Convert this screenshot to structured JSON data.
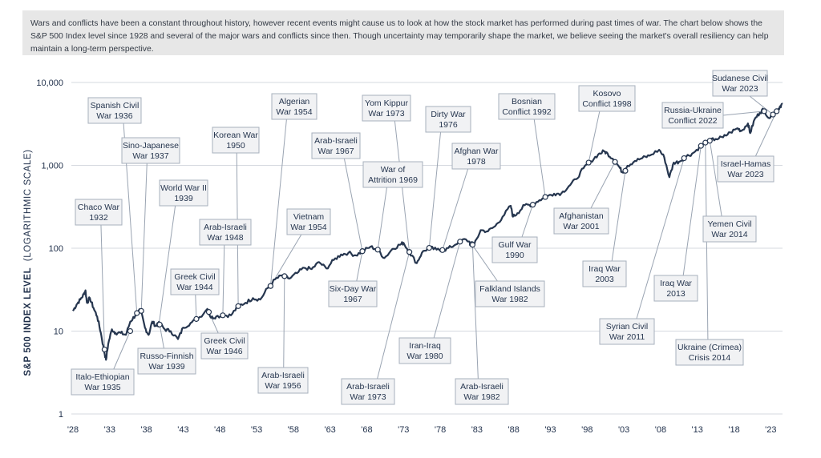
{
  "intro_text": "Wars and conflicts have been a constant throughout history, however recent events might cause us to look at how the stock market has performed during past times of war. The chart below shows the S&P 500 Index level since 1928 and several of the major wars and conflicts since then. Though uncertainty may temporarily shape the market, we believe seeing the market's overall resiliency can help maintain a long-term perspective.",
  "colors": {
    "line": "#26364f",
    "grid": "#d5d9df",
    "box_fill": "#f1f2f4",
    "box_stroke": "#a7b0bd",
    "intro_bg": "#e7e7e7"
  },
  "chart_data": {
    "type": "line",
    "title": "",
    "ylabel_main": "S&P 500 INDEX LEVEL",
    "ylabel_sub": "(LOGARITHMIC SCALE)",
    "xlabel": "",
    "yscale": "log",
    "ylim": [
      1,
      10000
    ],
    "xlim": [
      1928,
      2024.6
    ],
    "y_ticks": [
      {
        "value": 1,
        "label": "1"
      },
      {
        "value": 10,
        "label": "10"
      },
      {
        "value": 100,
        "label": "100"
      },
      {
        "value": 1000,
        "label": "1,000"
      },
      {
        "value": 10000,
        "label": "10,000"
      }
    ],
    "x_ticks": [
      {
        "value": 1928,
        "label": "'28"
      },
      {
        "value": 1933,
        "label": "'33"
      },
      {
        "value": 1938,
        "label": "'38"
      },
      {
        "value": 1943,
        "label": "'43"
      },
      {
        "value": 1948,
        "label": "'48"
      },
      {
        "value": 1953,
        "label": "'53"
      },
      {
        "value": 1958,
        "label": "'58"
      },
      {
        "value": 1963,
        "label": "'63"
      },
      {
        "value": 1968,
        "label": "'68"
      },
      {
        "value": 1973,
        "label": "'73"
      },
      {
        "value": 1978,
        "label": "'78"
      },
      {
        "value": 1983,
        "label": "'83"
      },
      {
        "value": 1988,
        "label": "'88"
      },
      {
        "value": 1993,
        "label": "'93"
      },
      {
        "value": 1998,
        "label": "'98"
      },
      {
        "value": 2003,
        "label": "'03"
      },
      {
        "value": 2008,
        "label": "'08"
      },
      {
        "value": 2013,
        "label": "'13"
      },
      {
        "value": 2018,
        "label": "'18"
      },
      {
        "value": 2023,
        "label": "'23"
      }
    ],
    "series": [
      {
        "name": "S&P 500 Index",
        "points": [
          [
            1928.0,
            17.5
          ],
          [
            1928.5,
            21
          ],
          [
            1929.0,
            24
          ],
          [
            1929.5,
            28
          ],
          [
            1929.7,
            31
          ],
          [
            1929.9,
            22
          ],
          [
            1930.3,
            25
          ],
          [
            1930.8,
            19
          ],
          [
            1931.3,
            15
          ],
          [
            1931.8,
            9.5
          ],
          [
            1932.2,
            6
          ],
          [
            1932.5,
            4.5
          ],
          [
            1932.8,
            7
          ],
          [
            1933.3,
            10.5
          ],
          [
            1933.8,
            9.5
          ],
          [
            1934.5,
            9.5
          ],
          [
            1935.2,
            9
          ],
          [
            1935.8,
            13
          ],
          [
            1936.5,
            15.5
          ],
          [
            1937.2,
            18
          ],
          [
            1937.8,
            11
          ],
          [
            1938.3,
            9
          ],
          [
            1938.8,
            13
          ],
          [
            1939.3,
            11.5
          ],
          [
            1939.8,
            12.5
          ],
          [
            1940.5,
            10.5
          ],
          [
            1941.3,
            10
          ],
          [
            1942.3,
            8
          ],
          [
            1943.0,
            11
          ],
          [
            1944.0,
            12.5
          ],
          [
            1945.0,
            14
          ],
          [
            1946.3,
            18.5
          ],
          [
            1946.8,
            14.5
          ],
          [
            1947.5,
            15
          ],
          [
            1948.5,
            15.5
          ],
          [
            1949.5,
            15.5
          ],
          [
            1950.5,
            20
          ],
          [
            1951.5,
            22
          ],
          [
            1952.5,
            25
          ],
          [
            1953.5,
            24
          ],
          [
            1954.5,
            33
          ],
          [
            1955.5,
            42
          ],
          [
            1956.5,
            47
          ],
          [
            1957.5,
            43
          ],
          [
            1958.5,
            50
          ],
          [
            1959.5,
            58
          ],
          [
            1960.5,
            56
          ],
          [
            1961.5,
            68
          ],
          [
            1962.5,
            57
          ],
          [
            1963.5,
            72
          ],
          [
            1964.5,
            84
          ],
          [
            1965.5,
            88
          ],
          [
            1966.5,
            82
          ],
          [
            1967.5,
            93
          ],
          [
            1968.5,
            104
          ],
          [
            1969.5,
            96
          ],
          [
            1970.4,
            76
          ],
          [
            1971.5,
            98
          ],
          [
            1972.5,
            110
          ],
          [
            1973.0,
            116
          ],
          [
            1973.8,
            90
          ],
          [
            1974.8,
            66
          ],
          [
            1975.5,
            88
          ],
          [
            1976.5,
            102
          ],
          [
            1977.5,
            96
          ],
          [
            1978.5,
            95
          ],
          [
            1979.5,
            103
          ],
          [
            1980.5,
            120
          ],
          [
            1981.5,
            128
          ],
          [
            1982.6,
            108
          ],
          [
            1983.5,
            165
          ],
          [
            1984.5,
            160
          ],
          [
            1985.5,
            185
          ],
          [
            1986.5,
            240
          ],
          [
            1987.6,
            325
          ],
          [
            1987.9,
            240
          ],
          [
            1988.5,
            265
          ],
          [
            1989.5,
            330
          ],
          [
            1990.5,
            335
          ],
          [
            1991.5,
            380
          ],
          [
            1992.5,
            420
          ],
          [
            1993.5,
            455
          ],
          [
            1994.5,
            460
          ],
          [
            1995.5,
            560
          ],
          [
            1996.5,
            680
          ],
          [
            1997.5,
            920
          ],
          [
            1998.5,
            1120
          ],
          [
            1999.5,
            1350
          ],
          [
            2000.3,
            1480
          ],
          [
            2000.8,
            1380
          ],
          [
            2001.5,
            1200
          ],
          [
            2002.4,
            950
          ],
          [
            2002.8,
            820
          ],
          [
            2003.5,
            990
          ],
          [
            2004.5,
            1130
          ],
          [
            2005.5,
            1220
          ],
          [
            2006.5,
            1310
          ],
          [
            2007.8,
            1540
          ],
          [
            2008.5,
            1250
          ],
          [
            2009.2,
            720
          ],
          [
            2009.8,
            1080
          ],
          [
            2010.5,
            1100
          ],
          [
            2011.5,
            1280
          ],
          [
            2012.5,
            1420
          ],
          [
            2013.5,
            1720
          ],
          [
            2014.5,
            1980
          ],
          [
            2015.5,
            2080
          ],
          [
            2016.5,
            2180
          ],
          [
            2017.5,
            2500
          ],
          [
            2018.5,
            2800
          ],
          [
            2019.0,
            2600
          ],
          [
            2019.9,
            3200
          ],
          [
            2020.2,
            2450
          ],
          [
            2020.8,
            3600
          ],
          [
            2021.5,
            4300
          ],
          [
            2022.0,
            4750
          ],
          [
            2022.8,
            3700
          ],
          [
            2023.5,
            4450
          ],
          [
            2023.9,
            4600
          ],
          [
            2024.3,
            5200
          ],
          [
            2024.6,
            5500
          ]
        ]
      }
    ],
    "annotations": [
      {
        "label": [
          "Chaco War",
          "1932"
        ],
        "event_x": 1932.3,
        "event_y": 6
      },
      {
        "label": [
          "Spanish Civil",
          "War 1936"
        ],
        "event_x": 1936.7,
        "event_y": 16.5
      },
      {
        "label": [
          "Sino-Japanese",
          "War 1937"
        ],
        "event_x": 1937.3,
        "event_y": 17.5
      },
      {
        "label": [
          "World War II",
          "1939"
        ],
        "event_x": 1939.7,
        "event_y": 12
      },
      {
        "label": [
          "Italo-Ethiopian",
          "War 1935"
        ],
        "event_x": 1935.8,
        "event_y": 10
      },
      {
        "label": [
          "Russo-Finnish",
          "War 1939"
        ],
        "event_x": 1939.8,
        "event_y": 12
      },
      {
        "label": [
          "Greek Civil",
          "War 1944"
        ],
        "event_x": 1944.8,
        "event_y": 14
      },
      {
        "label": [
          "Greek Civil",
          "War 1946"
        ],
        "event_x": 1946.5,
        "event_y": 17
      },
      {
        "label": [
          "Korean War",
          "1950"
        ],
        "event_x": 1950.5,
        "event_y": 20
      },
      {
        "label": [
          "Arab-Israeli",
          "War 1948"
        ],
        "event_x": 1948.4,
        "event_y": 15.5
      },
      {
        "label": [
          "Algerian",
          "War 1954"
        ],
        "event_x": 1954.9,
        "event_y": 35
      },
      {
        "label": [
          "Vietnam",
          "War 1954"
        ],
        "event_x": 1954.9,
        "event_y": 35
      },
      {
        "label": [
          "Arab-Israeli",
          "War 1956"
        ],
        "event_x": 1956.8,
        "event_y": 46
      },
      {
        "label": [
          "Arab-Israeli",
          "War 1967"
        ],
        "event_x": 1967.4,
        "event_y": 92
      },
      {
        "label": [
          "Six-Day War",
          "1967"
        ],
        "event_x": 1967.4,
        "event_y": 92
      },
      {
        "label": [
          "Yom Kippur",
          "War 1973"
        ],
        "event_x": 1973.8,
        "event_y": 90
      },
      {
        "label": [
          "War of",
          "Attrition 1969"
        ],
        "event_x": 1969.5,
        "event_y": 96
      },
      {
        "label": [
          "Arab-Israeli",
          "War 1973"
        ],
        "event_x": 1973.8,
        "event_y": 90
      },
      {
        "label": [
          "Dirty War",
          "1976"
        ],
        "event_x": 1976.5,
        "event_y": 101
      },
      {
        "label": [
          "Afghan War",
          "1978"
        ],
        "event_x": 1978.3,
        "event_y": 95
      },
      {
        "label": [
          "Iran-Iraq",
          "War 1980"
        ],
        "event_x": 1980.7,
        "event_y": 120
      },
      {
        "label": [
          "Falkland Islands",
          "War 1982"
        ],
        "event_x": 1982.3,
        "event_y": 112
      },
      {
        "label": [
          "Arab-Israeli",
          "War 1982"
        ],
        "event_x": 1982.4,
        "event_y": 110
      },
      {
        "label": [
          "Bosnian",
          "Conflict 1992"
        ],
        "event_x": 1992.3,
        "event_y": 415
      },
      {
        "label": [
          "Gulf War",
          "1990"
        ],
        "event_x": 1990.6,
        "event_y": 335
      },
      {
        "label": [
          "Kosovo",
          "Conflict 1998"
        ],
        "event_x": 1998.2,
        "event_y": 1080
      },
      {
        "label": [
          "Afghanistan",
          "War 2001"
        ],
        "event_x": 2001.8,
        "event_y": 1100
      },
      {
        "label": [
          "Iraq War",
          "2003"
        ],
        "event_x": 2003.2,
        "event_y": 860
      },
      {
        "label": [
          "Syrian Civil",
          "War 2011"
        ],
        "event_x": 2011.2,
        "event_y": 1220
      },
      {
        "label": [
          "Iraq War",
          "2013"
        ],
        "event_x": 2013.5,
        "event_y": 1720
      },
      {
        "label": [
          "Ukraine (Crimea)",
          "Crisis 2014"
        ],
        "event_x": 2014.1,
        "event_y": 1880
      },
      {
        "label": [
          "Yemen Civil",
          "War 2014"
        ],
        "event_x": 2014.7,
        "event_y": 1980
      },
      {
        "label": [
          "Russia-Ukraine",
          "Conflict 2022"
        ],
        "event_x": 2022.1,
        "event_y": 4500
      },
      {
        "label": [
          "Sudanese Civil",
          "War 2023"
        ],
        "event_x": 2023.3,
        "event_y": 4100
      },
      {
        "label": [
          "Israel-Hamas",
          "War 2023"
        ],
        "event_x": 2023.8,
        "event_y": 4500
      }
    ]
  }
}
